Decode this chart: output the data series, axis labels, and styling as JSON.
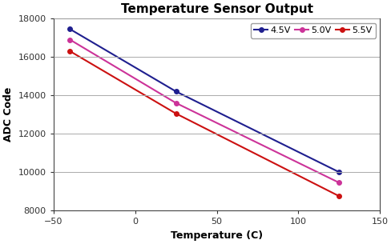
{
  "title": "Temperature Sensor Output",
  "xlabel": "Temperature (C)",
  "ylabel": "ADC Code",
  "xlim": [
    -50,
    150
  ],
  "ylim": [
    8000,
    18000
  ],
  "xticks": [
    -50,
    0,
    50,
    100,
    150
  ],
  "yticks": [
    8000,
    10000,
    12000,
    14000,
    16000,
    18000
  ],
  "series": [
    {
      "label": "4.5V",
      "color": "#1f1f8f",
      "marker": "o",
      "x": [
        -40,
        25,
        125
      ],
      "y": [
        17450,
        14200,
        10000
      ]
    },
    {
      "label": "5.0V",
      "color": "#cc3399",
      "marker": "o",
      "x": [
        -40,
        25,
        125
      ],
      "y": [
        16900,
        13600,
        9450
      ]
    },
    {
      "label": "5.5V",
      "color": "#cc1111",
      "marker": "o",
      "x": [
        -40,
        25,
        125
      ],
      "y": [
        16300,
        13050,
        8750
      ]
    }
  ],
  "background_color": "#ffffff",
  "plot_bg_color": "#ffffff",
  "grid_color": "#aaaaaa",
  "title_fontsize": 11,
  "axis_label_fontsize": 9,
  "tick_fontsize": 8,
  "legend_fontsize": 8
}
